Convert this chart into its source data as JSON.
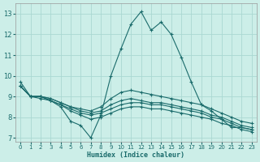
{
  "xlabel": "Humidex (Indice chaleur)",
  "bg_color": "#cceee8",
  "grid_color": "#aad8d2",
  "line_color": "#1a6b6b",
  "x_ticks": [
    0,
    1,
    2,
    3,
    4,
    5,
    6,
    7,
    8,
    9,
    10,
    11,
    12,
    13,
    14,
    15,
    16,
    17,
    18,
    19,
    20,
    21,
    22,
    23
  ],
  "y_ticks": [
    7,
    8,
    9,
    10,
    11,
    12,
    13
  ],
  "xlim": [
    -0.5,
    23.5
  ],
  "ylim": [
    6.8,
    13.5
  ],
  "lines": [
    [
      9.7,
      9.0,
      8.9,
      8.8,
      8.5,
      7.8,
      7.6,
      7.0,
      8.1,
      10.0,
      11.3,
      12.5,
      13.1,
      12.2,
      12.6,
      12.0,
      10.9,
      9.7,
      8.6,
      8.3,
      7.9,
      7.5,
      7.5,
      7.4
    ],
    [
      9.5,
      9.0,
      9.0,
      8.9,
      8.7,
      8.5,
      8.4,
      8.3,
      8.5,
      8.9,
      9.2,
      9.3,
      9.2,
      9.1,
      9.0,
      8.9,
      8.8,
      8.7,
      8.6,
      8.4,
      8.2,
      8.0,
      7.8,
      7.7
    ],
    [
      9.5,
      9.0,
      9.0,
      8.9,
      8.7,
      8.5,
      8.3,
      8.2,
      8.3,
      8.6,
      8.8,
      8.9,
      8.8,
      8.7,
      8.7,
      8.6,
      8.5,
      8.4,
      8.3,
      8.1,
      8.0,
      7.8,
      7.6,
      7.5
    ],
    [
      9.5,
      9.0,
      9.0,
      8.8,
      8.6,
      8.4,
      8.2,
      8.1,
      8.2,
      8.4,
      8.6,
      8.7,
      8.7,
      8.6,
      8.6,
      8.5,
      8.4,
      8.3,
      8.2,
      8.0,
      7.9,
      7.7,
      7.5,
      7.4
    ],
    [
      9.5,
      9.0,
      9.0,
      8.8,
      8.6,
      8.3,
      8.1,
      7.9,
      8.0,
      8.2,
      8.4,
      8.5,
      8.5,
      8.4,
      8.4,
      8.3,
      8.2,
      8.1,
      8.0,
      7.9,
      7.7,
      7.6,
      7.4,
      7.3
    ]
  ]
}
